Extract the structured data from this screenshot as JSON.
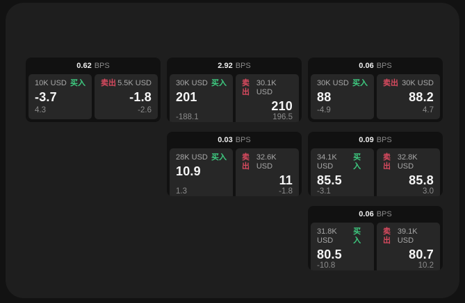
{
  "colors": {
    "page_bg": "#121212",
    "panel_bg": "#1e1e1e",
    "card_bg": "#111111",
    "pane_bg": "#272727",
    "buy_green": "#3ecb80",
    "sell_red": "#d84a5f",
    "value_white": "#f5f5f5",
    "muted_gray": "#8c8c8c"
  },
  "labels": {
    "bps": "BPS",
    "buy": "买入",
    "sell": "卖出"
  },
  "cards": [
    {
      "bps": "0.62",
      "buy": {
        "size": "10K USD",
        "price": "-3.7",
        "delta": "4.3"
      },
      "sell": {
        "size": "5.5K USD",
        "price": "-1.8",
        "delta": "-2.6"
      }
    },
    {
      "bps": "2.92",
      "buy": {
        "size": "30K USD",
        "price": "201",
        "delta": "-188.1"
      },
      "sell": {
        "size": "30.1K USD",
        "price": "210",
        "delta": "196.5"
      }
    },
    {
      "bps": "0.06",
      "buy": {
        "size": "30K USD",
        "price": "88",
        "delta": "-4.9"
      },
      "sell": {
        "size": "30K USD",
        "price": "88.2",
        "delta": "4.7"
      }
    },
    {
      "bps": "0.03",
      "buy": {
        "size": "28K USD",
        "price": "10.9",
        "delta": "1.3"
      },
      "sell": {
        "size": "32.6K USD",
        "price": "11",
        "delta": "-1.8"
      }
    },
    {
      "bps": "0.09",
      "buy": {
        "size": "34.1K USD",
        "price": "85.5",
        "delta": "-3.1"
      },
      "sell": {
        "size": "32.8K USD",
        "price": "85.8",
        "delta": "3.0"
      }
    },
    {
      "bps": "0.06",
      "buy": {
        "size": "31.8K USD",
        "price": "80.5",
        "delta": "-10.8"
      },
      "sell": {
        "size": "39.1K USD",
        "price": "80.7",
        "delta": "10.2"
      }
    }
  ]
}
